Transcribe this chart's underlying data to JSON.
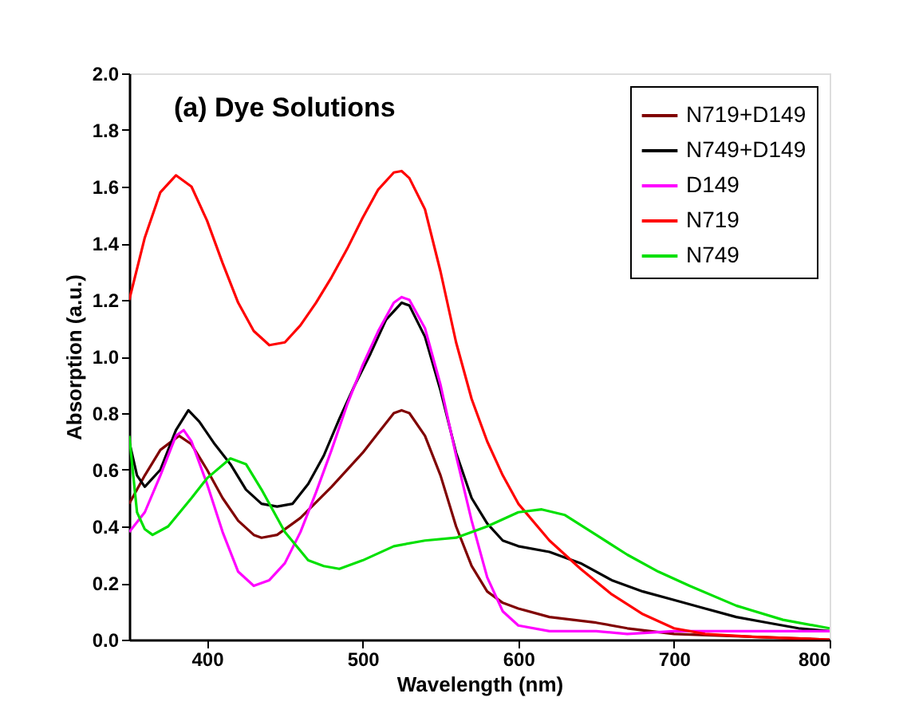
{
  "chart_data": {
    "type": "line",
    "title": "(a) Dye Solutions",
    "xlabel": "Wavelength (nm)",
    "ylabel": "Absorption (a.u.)",
    "xlim": [
      350,
      800
    ],
    "xticks": [
      400,
      500,
      600,
      700,
      800
    ],
    "ylim": [
      0,
      2
    ],
    "yticks": [
      {
        "value": 0,
        "label": "0.0"
      },
      0.2,
      0.4,
      0.6,
      0.8,
      {
        "value": 1,
        "label": "1.0"
      },
      1.2,
      1.4,
      1.6,
      1.8,
      {
        "value": 2,
        "label": "2.0"
      }
    ],
    "grid": false,
    "legend": "top right",
    "marker": "none",
    "line_style": "solid",
    "series": [
      {
        "name": "N719+D149",
        "color": "#800000",
        "x": [
          350,
          360,
          370,
          382,
          390,
          400,
          410,
          420,
          430,
          435,
          445,
          460,
          480,
          500,
          510,
          520,
          525,
          530,
          540,
          550,
          560,
          570,
          580,
          590,
          600,
          620,
          650,
          670,
          700,
          750,
          800
        ],
        "values": [
          0.48,
          0.58,
          0.67,
          0.72,
          0.69,
          0.6,
          0.5,
          0.42,
          0.37,
          0.36,
          0.37,
          0.43,
          0.54,
          0.66,
          0.73,
          0.8,
          0.81,
          0.8,
          0.72,
          0.58,
          0.4,
          0.26,
          0.17,
          0.13,
          0.11,
          0.08,
          0.06,
          0.04,
          0.02,
          0.01,
          0.0
        ]
      },
      {
        "name": "N749+D149",
        "color": "#000000",
        "x": [
          350,
          355,
          360,
          370,
          380,
          388,
          395,
          405,
          415,
          425,
          435,
          445,
          455,
          465,
          475,
          485,
          495,
          505,
          515,
          525,
          530,
          540,
          550,
          560,
          570,
          580,
          590,
          600,
          620,
          640,
          660,
          680,
          700,
          720,
          740,
          760,
          780,
          800
        ],
        "values": [
          0.7,
          0.58,
          0.54,
          0.6,
          0.74,
          0.81,
          0.77,
          0.69,
          0.62,
          0.53,
          0.48,
          0.47,
          0.48,
          0.55,
          0.65,
          0.78,
          0.9,
          1.01,
          1.13,
          1.19,
          1.18,
          1.07,
          0.88,
          0.66,
          0.5,
          0.41,
          0.35,
          0.33,
          0.31,
          0.27,
          0.21,
          0.17,
          0.14,
          0.11,
          0.08,
          0.06,
          0.04,
          0.03
        ]
      },
      {
        "name": "D149",
        "color": "#ff00ff",
        "x": [
          350,
          360,
          370,
          380,
          385,
          390,
          400,
          410,
          420,
          430,
          440,
          450,
          460,
          470,
          480,
          490,
          500,
          510,
          520,
          525,
          530,
          540,
          550,
          560,
          570,
          580,
          590,
          600,
          620,
          650,
          670,
          700,
          730,
          800
        ],
        "values": [
          0.38,
          0.45,
          0.58,
          0.72,
          0.74,
          0.7,
          0.55,
          0.38,
          0.24,
          0.19,
          0.21,
          0.27,
          0.38,
          0.52,
          0.67,
          0.83,
          0.97,
          1.09,
          1.19,
          1.21,
          1.2,
          1.1,
          0.9,
          0.65,
          0.42,
          0.22,
          0.1,
          0.05,
          0.03,
          0.03,
          0.02,
          0.03,
          0.03,
          0.03
        ]
      },
      {
        "name": "N719",
        "color": "#ff0000",
        "x": [
          350,
          360,
          370,
          380,
          390,
          400,
          410,
          420,
          430,
          440,
          450,
          460,
          470,
          480,
          490,
          500,
          510,
          520,
          525,
          530,
          540,
          550,
          560,
          570,
          580,
          590,
          600,
          620,
          640,
          660,
          680,
          700,
          720,
          750,
          800
        ],
        "values": [
          1.2,
          1.42,
          1.58,
          1.64,
          1.6,
          1.48,
          1.33,
          1.19,
          1.09,
          1.04,
          1.05,
          1.11,
          1.19,
          1.28,
          1.38,
          1.49,
          1.59,
          1.65,
          1.655,
          1.63,
          1.52,
          1.3,
          1.05,
          0.85,
          0.7,
          0.58,
          0.48,
          0.35,
          0.25,
          0.16,
          0.09,
          0.04,
          0.02,
          0.01,
          0.0
        ]
      },
      {
        "name": "N749",
        "color": "#00e000",
        "x": [
          350,
          355,
          360,
          365,
          375,
          390,
          400,
          415,
          425,
          435,
          450,
          465,
          475,
          485,
          500,
          520,
          540,
          560,
          580,
          600,
          615,
          630,
          650,
          670,
          690,
          710,
          740,
          770,
          800
        ],
        "values": [
          0.72,
          0.45,
          0.39,
          0.37,
          0.4,
          0.5,
          0.57,
          0.64,
          0.62,
          0.53,
          0.38,
          0.28,
          0.26,
          0.25,
          0.28,
          0.33,
          0.35,
          0.36,
          0.4,
          0.45,
          0.46,
          0.44,
          0.37,
          0.3,
          0.24,
          0.19,
          0.12,
          0.07,
          0.04
        ]
      }
    ]
  }
}
